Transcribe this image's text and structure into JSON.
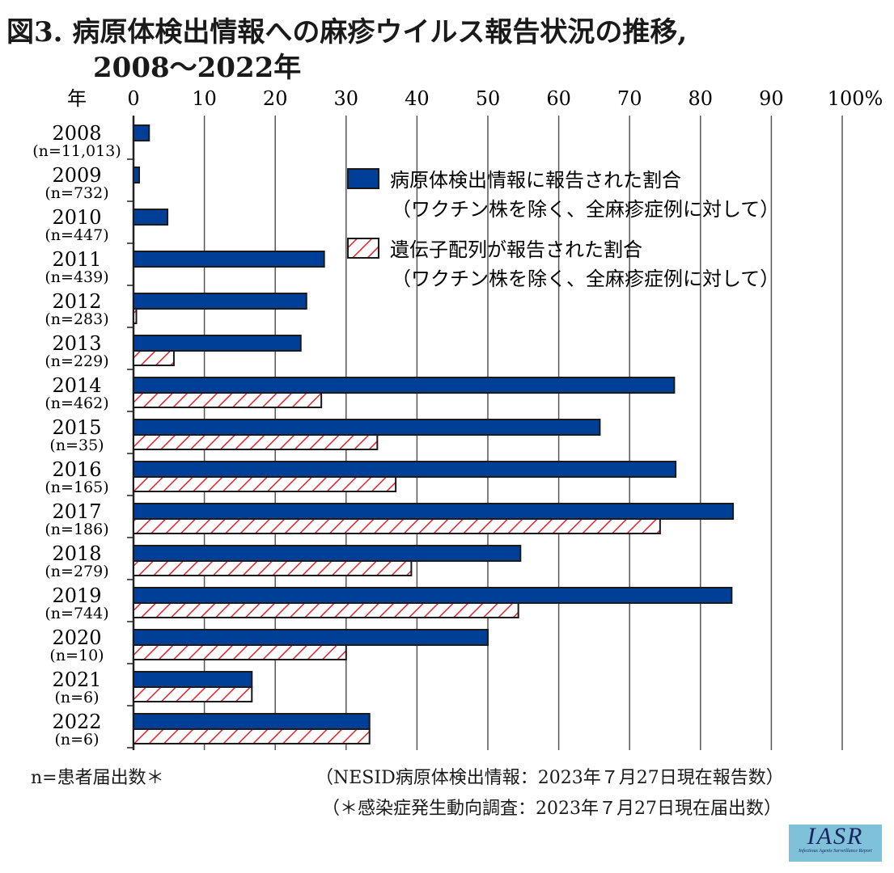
{
  "title_line1": "図3. 病原体検出情報への麻疹ウイルス報告状況の推移,",
  "title_line2": "2008〜2022年",
  "chart_data": {
    "type": "bar",
    "orientation": "horizontal",
    "ylabel": "年",
    "x_unit": "%",
    "xlim": [
      0,
      100
    ],
    "x_ticks": [
      0,
      10,
      20,
      30,
      40,
      50,
      60,
      70,
      80,
      90,
      100
    ],
    "grid": true,
    "legend_position": "top-right",
    "categories": [
      "2008",
      "2009",
      "2010",
      "2011",
      "2012",
      "2013",
      "2014",
      "2015",
      "2016",
      "2017",
      "2018",
      "2019",
      "2020",
      "2021",
      "2022"
    ],
    "category_sublabels": [
      "(n=11,013)",
      "(n=732)",
      "(n=447)",
      "(n=439)",
      "(n=283)",
      "(n=229)",
      "(n=462)",
      "(n=35)",
      "(n=165)",
      "(n=186)",
      "(n=279)",
      "(n=744)",
      "(n=10)",
      "(n=6)",
      "(n=6)"
    ],
    "series": [
      {
        "name": "病原体検出情報に報告された割合",
        "name_line2": "（ワクチン株を除く、全麻疹症例に対して）",
        "color": "#003f98",
        "pattern": "solid",
        "values": [
          2.2,
          0.8,
          4.8,
          26.9,
          24.4,
          23.6,
          76.3,
          65.8,
          76.5,
          84.6,
          54.6,
          84.4,
          50.0,
          16.7,
          33.3
        ]
      },
      {
        "name": "遺伝子配列が報告された割合",
        "name_line2": "（ワクチン株を除く、全麻疹症例に対して）",
        "color": "#e8202a",
        "pattern": "hatched",
        "values": [
          0,
          0,
          0,
          0,
          0.4,
          5.7,
          26.5,
          34.4,
          37.0,
          74.3,
          39.2,
          54.3,
          30.0,
          16.7,
          33.3
        ]
      }
    ]
  },
  "footnote_left": "n=患者届出数＊",
  "source_line1": "（NESID病原体検出情報：2023年７月27日現在報告数）",
  "source_line2": "（＊感染症発生動向調査：2023年７月27日現在届出数）",
  "logo": {
    "text": "IASR",
    "subtitle": "Infectious Agents Surveillance Report",
    "bg": "#7fc1d9"
  }
}
